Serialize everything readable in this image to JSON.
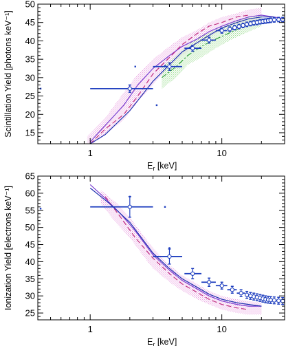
{
  "chart_data": [
    {
      "type": "scatter",
      "xscale": "log",
      "xlim": [
        0.4,
        30
      ],
      "ylim": [
        12,
        50
      ],
      "xlabel": "E_r [keV]",
      "xlabel_main": "E",
      "xlabel_sub": "r",
      "xlabel_rest": " [keV]",
      "ylabel": "Scintillation Yield [photons keV⁻¹]",
      "x_ticks": [
        {
          "value": 1,
          "label": "1"
        },
        {
          "value": 10,
          "label": "10"
        }
      ],
      "y_ticks": [
        {
          "value": 15,
          "label": "15"
        },
        {
          "value": 20,
          "label": "20"
        },
        {
          "value": 25,
          "label": "25"
        },
        {
          "value": 30,
          "label": "30"
        },
        {
          "value": 35,
          "label": "35"
        },
        {
          "value": 40,
          "label": "40"
        },
        {
          "value": 45,
          "label": "45"
        },
        {
          "value": 50,
          "label": "50"
        }
      ],
      "grid": false,
      "measurements": {
        "color": "#1f3fbf",
        "points": [
          {
            "x": 2.0,
            "y": 27.0,
            "xlo": 1.0,
            "xhi": 3.0,
            "yerr": 1.0
          },
          {
            "x": 4.0,
            "y": 33.0,
            "xlo": 3.0,
            "xhi": 5.0,
            "yerr": 1.0
          },
          {
            "x": 6.0,
            "y": 38.0,
            "xlo": 5.2,
            "xhi": 7.0,
            "yerr": 0.8
          },
          {
            "x": 8.0,
            "y": 40.2,
            "xlo": 7.0,
            "xhi": 9.0,
            "yerr": 0.8
          },
          {
            "x": 10.0,
            "y": 42.8,
            "xlo": 9.0,
            "xhi": 11.0,
            "yerr": 0.7
          },
          {
            "x": 11.5,
            "y": 43.2,
            "xlo": 11.0,
            "xhi": 12.2,
            "yerr": 0.6
          },
          {
            "x": 12.5,
            "y": 43.6,
            "xlo": 12.0,
            "xhi": 13.2,
            "yerr": 0.6
          },
          {
            "x": 13.5,
            "y": 43.9,
            "xlo": 13.0,
            "xhi": 14.2,
            "yerr": 0.6
          },
          {
            "x": 14.5,
            "y": 44.2,
            "xlo": 14.0,
            "xhi": 15.2,
            "yerr": 0.6
          },
          {
            "x": 15.5,
            "y": 44.5,
            "xlo": 15.0,
            "xhi": 16.2,
            "yerr": 0.6
          },
          {
            "x": 16.5,
            "y": 44.7,
            "xlo": 16.0,
            "xhi": 17.2,
            "yerr": 0.6
          },
          {
            "x": 17.5,
            "y": 44.9,
            "xlo": 17.0,
            "xhi": 18.2,
            "yerr": 0.6
          },
          {
            "x": 18.5,
            "y": 45.0,
            "xlo": 18.0,
            "xhi": 19.2,
            "yerr": 0.6
          },
          {
            "x": 19.5,
            "y": 45.2,
            "xlo": 19.0,
            "xhi": 20.2,
            "yerr": 0.6
          },
          {
            "x": 20.5,
            "y": 45.3,
            "xlo": 20.0,
            "xhi": 21.2,
            "yerr": 0.6
          },
          {
            "x": 21.5,
            "y": 45.4,
            "xlo": 21.0,
            "xhi": 22.2,
            "yerr": 0.6
          },
          {
            "x": 22.5,
            "y": 45.5,
            "xlo": 22.0,
            "xhi": 23.2,
            "yerr": 0.6
          },
          {
            "x": 23.5,
            "y": 45.6,
            "xlo": 23.0,
            "xhi": 24.2,
            "yerr": 0.6
          },
          {
            "x": 25.0,
            "y": 45.7,
            "xlo": 24.2,
            "xhi": 26.0,
            "yerr": 0.6
          },
          {
            "x": 27.0,
            "y": 45.8,
            "xlo": 26.0,
            "xhi": 28.2,
            "yerr": 0.6
          },
          {
            "x": 29.0,
            "y": 45.8,
            "xlo": 28.2,
            "xhi": 30.0,
            "yerr": 0.6
          }
        ]
      },
      "curves": [
        {
          "color": "#7b3fd0",
          "style": "solid",
          "x": [
            1.0,
            1.3,
            1.8,
            2.3,
            3.0,
            4.0,
            5.0,
            6.5,
            8.0,
            10.0,
            13.0,
            16.0,
            20.0,
            25.0,
            30.0
          ],
          "y": [
            12.5,
            17.0,
            22.5,
            28.0,
            32.5,
            36.0,
            38.5,
            40.5,
            42.5,
            44.0,
            45.5,
            46.5,
            47.0,
            46.5,
            46.0
          ]
        },
        {
          "color": "#c03080",
          "style": "dashed",
          "x": [
            1.0,
            1.3,
            1.8,
            2.3,
            3.0,
            4.0,
            5.0,
            6.5,
            8.0,
            10.0,
            13.0,
            16.0
          ],
          "y": [
            12.0,
            16.0,
            20.0,
            25.0,
            31.0,
            35.5,
            39.0,
            42.0,
            44.0,
            45.0,
            46.5,
            47.0
          ]
        },
        {
          "color": "#2d9c3a",
          "style": "dashdot",
          "x": [
            3.5,
            4.5,
            5.5,
            7.0,
            9.0,
            12.0,
            16.0,
            20.0
          ],
          "y": [
            30.0,
            33.0,
            36.0,
            38.5,
            40.5,
            42.5,
            44.5,
            45.5
          ]
        },
        {
          "color": "#2030b0",
          "style": "solid",
          "x": [
            1.0,
            1.3,
            2.0,
            3.0,
            4.0,
            5.0,
            6.5,
            8.0,
            10.0,
            13.0,
            16.0,
            20.0,
            25.0
          ],
          "y": [
            12.0,
            14.5,
            21.0,
            29.0,
            33.5,
            37.0,
            39.5,
            41.5,
            43.5,
            45.0,
            46.0,
            46.5,
            46.5
          ]
        }
      ],
      "bands": [
        {
          "color": "#e38ad8",
          "x": [
            0.95,
            1.3,
            1.8,
            2.3,
            3.0,
            4.0,
            5.0,
            6.5,
            8.0,
            10.0,
            13.0,
            16.0,
            20.0
          ],
          "upper": [
            14.0,
            19.0,
            26.0,
            31.0,
            35.0,
            38.5,
            41.0,
            43.0,
            45.0,
            46.5,
            47.5,
            48.5,
            49.0
          ],
          "lower": [
            11.0,
            14.5,
            18.5,
            23.5,
            28.0,
            33.0,
            36.0,
            39.0,
            41.0,
            43.0,
            44.5,
            45.0,
            45.5
          ]
        },
        {
          "color": "#86d67a",
          "x": [
            3.5,
            4.5,
            5.5,
            7.0,
            9.0,
            12.0,
            16.0,
            20.0
          ],
          "upper": [
            33.0,
            36.0,
            39.0,
            41.5,
            43.0,
            45.0,
            46.5,
            47.0
          ],
          "lower": [
            27.0,
            30.0,
            33.5,
            35.5,
            38.0,
            40.5,
            42.5,
            44.0
          ]
        }
      ],
      "markers": [
        {
          "x": 2.2,
          "y": 33.0
        },
        {
          "x": 3.2,
          "y": 22.5
        },
        {
          "x": 3.7,
          "y": 33.2
        },
        {
          "x": 0.42,
          "y": 27.0
        }
      ]
    },
    {
      "type": "scatter",
      "xscale": "log",
      "xlim": [
        0.4,
        30
      ],
      "ylim": [
        23,
        65
      ],
      "xlabel": "E_r [keV]",
      "xlabel_main": "E",
      "xlabel_sub": "r",
      "xlabel_rest": " [keV]",
      "ylabel": "Ionization Yield [electrons keV⁻¹]",
      "x_ticks": [
        {
          "value": 1,
          "label": "1"
        },
        {
          "value": 10,
          "label": "10"
        }
      ],
      "y_ticks": [
        {
          "value": 25,
          "label": "25"
        },
        {
          "value": 30,
          "label": "30"
        },
        {
          "value": 35,
          "label": "35"
        },
        {
          "value": 40,
          "label": "40"
        },
        {
          "value": 45,
          "label": "45"
        },
        {
          "value": 50,
          "label": "50"
        },
        {
          "value": 55,
          "label": "55"
        },
        {
          "value": 60,
          "label": "60"
        },
        {
          "value": 65,
          "label": "65"
        }
      ],
      "grid": false,
      "measurements": {
        "color": "#1f3fbf",
        "points": [
          {
            "x": 2.0,
            "y": 56.0,
            "xlo": 1.0,
            "xhi": 3.0,
            "yerr": 3.0
          },
          {
            "x": 4.0,
            "y": 41.5,
            "xlo": 3.0,
            "xhi": 5.0,
            "yerr": 2.2
          },
          {
            "x": 6.0,
            "y": 36.5,
            "xlo": 5.2,
            "xhi": 7.0,
            "yerr": 1.5
          },
          {
            "x": 8.0,
            "y": 34.0,
            "xlo": 7.0,
            "xhi": 9.0,
            "yerr": 1.2
          },
          {
            "x": 10.0,
            "y": 33.0,
            "xlo": 9.0,
            "xhi": 11.0,
            "yerr": 1.0
          },
          {
            "x": 12.0,
            "y": 31.8,
            "xlo": 11.0,
            "xhi": 13.0,
            "yerr": 1.0
          },
          {
            "x": 14.0,
            "y": 30.8,
            "xlo": 13.0,
            "xhi": 15.0,
            "yerr": 1.0
          },
          {
            "x": 15.5,
            "y": 30.3,
            "xlo": 15.0,
            "xhi": 16.2,
            "yerr": 1.0
          },
          {
            "x": 16.5,
            "y": 30.0,
            "xlo": 16.0,
            "xhi": 17.2,
            "yerr": 1.0
          },
          {
            "x": 17.5,
            "y": 29.8,
            "xlo": 17.0,
            "xhi": 18.2,
            "yerr": 1.0
          },
          {
            "x": 18.5,
            "y": 29.6,
            "xlo": 18.0,
            "xhi": 19.2,
            "yerr": 1.0
          },
          {
            "x": 19.5,
            "y": 29.4,
            "xlo": 19.0,
            "xhi": 20.2,
            "yerr": 1.0
          },
          {
            "x": 20.5,
            "y": 29.2,
            "xlo": 20.0,
            "xhi": 21.2,
            "yerr": 1.0
          },
          {
            "x": 21.5,
            "y": 29.0,
            "xlo": 21.0,
            "xhi": 22.2,
            "yerr": 1.0
          },
          {
            "x": 22.5,
            "y": 28.9,
            "xlo": 22.0,
            "xhi": 23.2,
            "yerr": 1.0
          },
          {
            "x": 23.5,
            "y": 28.8,
            "xlo": 23.0,
            "xhi": 24.2,
            "yerr": 1.0
          },
          {
            "x": 25.0,
            "y": 28.7,
            "xlo": 24.2,
            "xhi": 26.0,
            "yerr": 1.0
          },
          {
            "x": 27.0,
            "y": 28.6,
            "xlo": 26.0,
            "xhi": 28.2,
            "yerr": 1.0
          },
          {
            "x": 29.0,
            "y": 28.5,
            "xlo": 28.2,
            "xhi": 30.0,
            "yerr": 1.0
          }
        ]
      },
      "curves": [
        {
          "color": "#7b3fd0",
          "style": "solid",
          "x": [
            1.0,
            1.3,
            1.7,
            2.2,
            3.0,
            4.0,
            5.0,
            6.5,
            8.0,
            10.0,
            13.0,
            16.0,
            20.0
          ],
          "y": [
            62.5,
            58.5,
            54.0,
            49.0,
            42.0,
            37.5,
            34.5,
            32.0,
            30.0,
            28.5,
            27.5,
            27.0,
            27.0
          ]
        },
        {
          "color": "#c03080",
          "style": "dashed",
          "x": [
            1.3,
            1.7,
            2.2,
            3.0,
            4.0,
            5.0,
            6.5,
            8.0,
            10.0,
            13.0,
            16.0
          ],
          "y": [
            59.0,
            53.0,
            47.0,
            41.0,
            36.5,
            33.5,
            31.0,
            29.0,
            27.5,
            26.5,
            26.0
          ]
        },
        {
          "color": "#2030b0",
          "style": "solid",
          "x": [
            1.0,
            1.4,
            2.0,
            3.0,
            4.0,
            5.0,
            6.5,
            8.0,
            10.0,
            13.0,
            16.0,
            20.0
          ],
          "y": [
            61.5,
            57.0,
            51.5,
            42.5,
            38.0,
            35.0,
            32.5,
            30.5,
            29.0,
            28.0,
            27.5,
            27.0
          ]
        }
      ],
      "bands": [
        {
          "color": "#e38ad8",
          "x": [
            1.2,
            1.6,
            2.0,
            2.5,
            3.0,
            4.0,
            5.0,
            6.5,
            8.0,
            10.0,
            13.0,
            16.0,
            20.0
          ],
          "upper": [
            61.0,
            57.0,
            53.0,
            48.0,
            44.0,
            39.0,
            36.0,
            33.5,
            31.5,
            30.0,
            29.0,
            28.5,
            28.0
          ],
          "lower": [
            57.0,
            51.0,
            47.0,
            42.0,
            38.0,
            34.0,
            31.5,
            29.0,
            27.5,
            26.0,
            25.0,
            24.5,
            24.5
          ]
        }
      ],
      "markers": [
        {
          "x": 2.0,
          "y": 59.0
        },
        {
          "x": 3.7,
          "y": 56.0
        },
        {
          "x": 4.0,
          "y": 44.0
        },
        {
          "x": 0.42,
          "y": 55.5
        }
      ]
    }
  ]
}
